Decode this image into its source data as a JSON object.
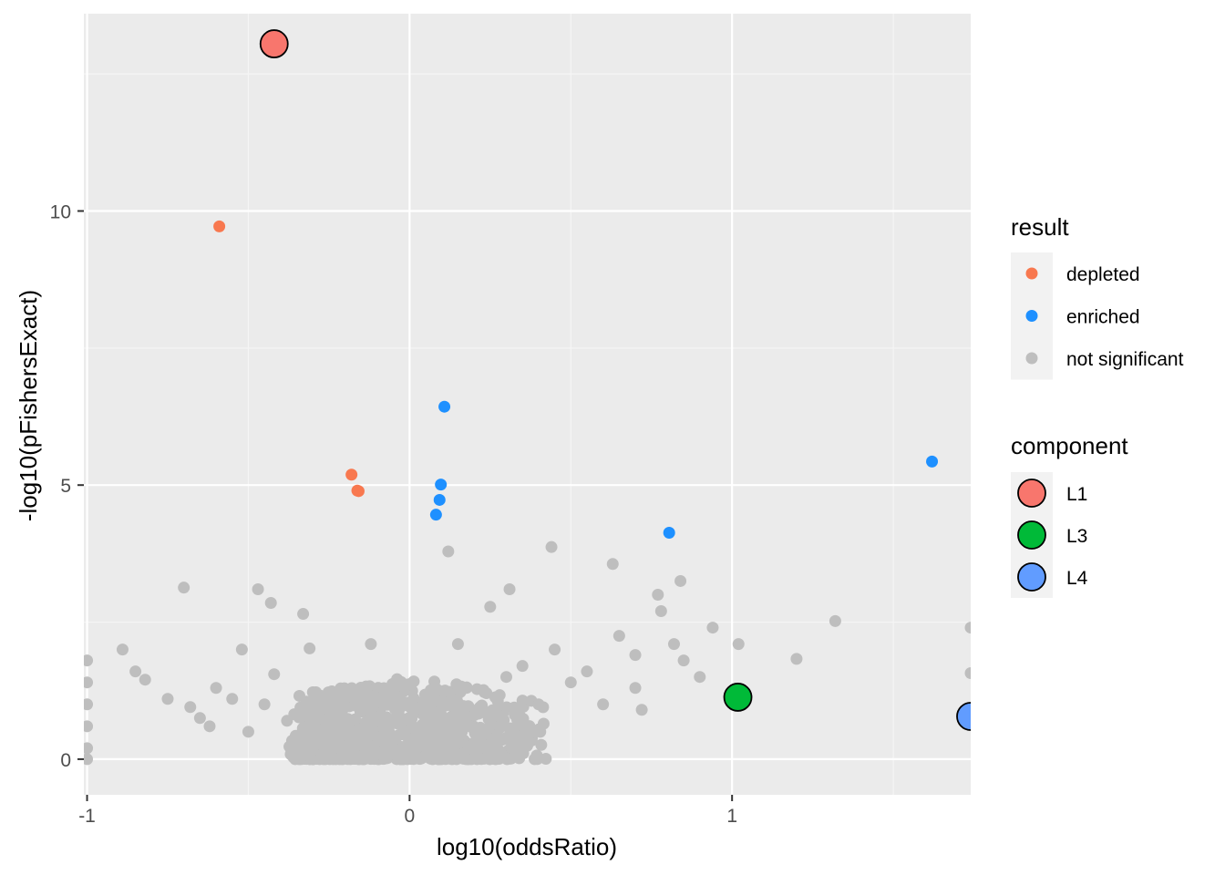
{
  "chart_data": {
    "type": "scatter",
    "xlabel": "log10(oddsRatio)",
    "ylabel": "-log10(pFishersExact)",
    "xlim": [
      -1.01,
      1.74
    ],
    "ylim": [
      -0.65,
      13.6
    ],
    "x_ticks": [
      {
        "value": -1,
        "label": "-1"
      },
      {
        "value": 0,
        "label": "0"
      },
      {
        "value": 1,
        "label": "1"
      }
    ],
    "x_minor_ticks": [
      -0.5,
      0.5,
      1.5
    ],
    "y_ticks": [
      {
        "value": 0,
        "label": "0"
      },
      {
        "value": 5,
        "label": "5"
      },
      {
        "value": 10,
        "label": "10"
      }
    ],
    "y_minor_ticks": [
      2.5,
      7.5,
      12.5
    ],
    "grid": true,
    "legends": [
      {
        "title": "result",
        "placement": "right-top",
        "entries": [
          {
            "label": "depleted",
            "color": "#F8784F"
          },
          {
            "label": "enriched",
            "color": "#1E90FF"
          },
          {
            "label": "not significant",
            "color": "#BEBEBE"
          }
        ]
      },
      {
        "title": "component",
        "placement": "right",
        "entries": [
          {
            "label": "L1",
            "color": "#F8766D"
          },
          {
            "label": "L3",
            "color": "#00BA38"
          },
          {
            "label": "L4",
            "color": "#619CFF"
          }
        ]
      }
    ],
    "series": [
      {
        "name": "depleted",
        "color": "#F8784F",
        "points": [
          [
            -0.59,
            9.72
          ],
          [
            -0.18,
            5.19
          ],
          [
            -0.158,
            4.89
          ],
          [
            -0.162,
            4.9
          ]
        ]
      },
      {
        "name": "enriched",
        "color": "#1E90FF",
        "points": [
          [
            0.108,
            6.43
          ],
          [
            0.097,
            5.01
          ],
          [
            0.093,
            4.73
          ],
          [
            0.082,
            4.46
          ],
          [
            0.805,
            4.13
          ],
          [
            1.62,
            5.43
          ]
        ]
      },
      {
        "name": "not significant",
        "color": "#BEBEBE",
        "points": [
          [
            -1.0,
            1.8
          ],
          [
            -1.0,
            1.4
          ],
          [
            -1.0,
            1.0
          ],
          [
            -1.0,
            0.6
          ],
          [
            -1.0,
            0.2
          ],
          [
            -1.0,
            0.0
          ],
          [
            -0.89,
            2.0
          ],
          [
            -0.85,
            1.6
          ],
          [
            -0.82,
            1.45
          ],
          [
            -0.75,
            1.1
          ],
          [
            -0.7,
            3.13
          ],
          [
            -0.68,
            0.95
          ],
          [
            -0.65,
            0.75
          ],
          [
            -0.62,
            0.6
          ],
          [
            -0.6,
            1.3
          ],
          [
            -0.55,
            1.1
          ],
          [
            -0.52,
            2.0
          ],
          [
            -0.5,
            0.5
          ],
          [
            -0.47,
            3.1
          ],
          [
            -0.45,
            1.0
          ],
          [
            -0.43,
            2.85
          ],
          [
            -0.42,
            1.55
          ],
          [
            -0.38,
            0.7
          ],
          [
            -0.33,
            2.65
          ],
          [
            -0.31,
            2.02
          ],
          [
            -0.3,
            0.4
          ],
          [
            -0.25,
            1.15
          ],
          [
            -0.2,
            0.6
          ],
          [
            -0.15,
            0.9
          ],
          [
            -0.12,
            2.1
          ],
          [
            -0.1,
            0.4
          ],
          [
            -0.05,
            0.2
          ],
          [
            0.0,
            0.05
          ],
          [
            0.05,
            0.3
          ],
          [
            0.1,
            1.0
          ],
          [
            0.12,
            3.79
          ],
          [
            0.15,
            2.1
          ],
          [
            0.2,
            0.8
          ],
          [
            0.25,
            2.78
          ],
          [
            0.3,
            1.5
          ],
          [
            0.31,
            3.1
          ],
          [
            0.35,
            1.7
          ],
          [
            0.4,
            1.0
          ],
          [
            0.44,
            3.87
          ],
          [
            0.45,
            2.0
          ],
          [
            0.5,
            1.4
          ],
          [
            0.55,
            1.6
          ],
          [
            0.6,
            1.0
          ],
          [
            0.63,
            3.56
          ],
          [
            0.65,
            2.25
          ],
          [
            0.7,
            1.9
          ],
          [
            0.7,
            1.3
          ],
          [
            0.72,
            0.9
          ],
          [
            0.77,
            3.0
          ],
          [
            0.78,
            2.7
          ],
          [
            0.82,
            2.1
          ],
          [
            0.84,
            3.25
          ],
          [
            0.85,
            1.8
          ],
          [
            0.9,
            1.5
          ],
          [
            0.94,
            2.4
          ],
          [
            1.02,
            2.1
          ],
          [
            1.2,
            1.83
          ],
          [
            1.32,
            2.52
          ],
          [
            1.74,
            2.4
          ],
          [
            1.74,
            1.57
          ]
        ]
      }
    ],
    "components": [
      {
        "label": "L1",
        "color": "#F8766D",
        "x": -0.42,
        "y": 13.05
      },
      {
        "label": "L3",
        "color": "#00BA38",
        "x": 1.018,
        "y": 1.13
      },
      {
        "label": "L4",
        "color": "#619CFF",
        "x": 1.74,
        "y": 0.78
      }
    ],
    "background_points_note": "dense cluster of not-significant points spanning x -0.35 to 0.45, y 0 to 1.5"
  }
}
